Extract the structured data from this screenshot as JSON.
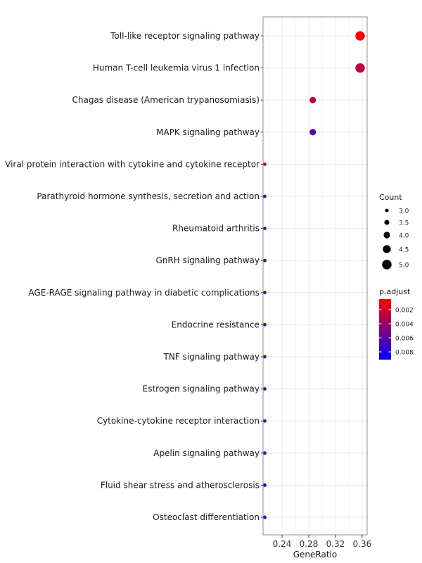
{
  "chart_data": {
    "type": "scatter",
    "xlabel": "GeneRatio",
    "ylabel": "",
    "xlim": [
      0.2115,
      0.3675
    ],
    "x_ticks": [
      0.24,
      0.28,
      0.32,
      0.36
    ],
    "x_tick_labels": [
      "0.24",
      "0.28",
      "0.32",
      "0.36"
    ],
    "grid": true,
    "legend_placement": "right",
    "terms": [
      "Toll-like receptor signaling pathway",
      "Human T-cell leukemia virus 1 infection",
      "Chagas disease (American trypanosomiasis)",
      "MAPK signaling pathway",
      "Viral protein interaction with cytokine and cytokine receptor",
      "Parathyroid hormone synthesis, secretion and action",
      "Rheumatoid arthritis",
      "GnRH signaling pathway",
      "AGE-RAGE signaling pathway in diabetic complications",
      "Endocrine resistance",
      "TNF signaling pathway",
      "Estrogen signaling pathway",
      "Cytokine-cytokine receptor interaction",
      "Apelin signaling pathway",
      "Fluid shear stress and atherosclerosis",
      "Osteoclast differentiation"
    ],
    "points": [
      {
        "x": 0.357,
        "count": 5,
        "p_adjust": 0.0005
      },
      {
        "x": 0.357,
        "count": 5,
        "p_adjust": 0.0026
      },
      {
        "x": 0.286,
        "count": 4,
        "p_adjust": 0.0028
      },
      {
        "x": 0.286,
        "count": 4,
        "p_adjust": 0.006
      },
      {
        "x": 0.214,
        "count": 3,
        "p_adjust": 0.0028
      },
      {
        "x": 0.214,
        "count": 3,
        "p_adjust": 0.006
      },
      {
        "x": 0.214,
        "count": 3,
        "p_adjust": 0.006
      },
      {
        "x": 0.214,
        "count": 3,
        "p_adjust": 0.006
      },
      {
        "x": 0.214,
        "count": 3,
        "p_adjust": 0.006
      },
      {
        "x": 0.214,
        "count": 3,
        "p_adjust": 0.006
      },
      {
        "x": 0.214,
        "count": 3,
        "p_adjust": 0.006
      },
      {
        "x": 0.214,
        "count": 3,
        "p_adjust": 0.006
      },
      {
        "x": 0.214,
        "count": 3,
        "p_adjust": 0.006
      },
      {
        "x": 0.214,
        "count": 3,
        "p_adjust": 0.006
      },
      {
        "x": 0.214,
        "count": 3,
        "p_adjust": 0.009
      },
      {
        "x": 0.214,
        "count": 3,
        "p_adjust": 0.0091
      }
    ],
    "size_legend": {
      "title": "Count",
      "values": [
        3.0,
        3.5,
        4.0,
        4.5,
        5.0
      ],
      "labels": [
        "3.0",
        "3.5",
        "4.0",
        "4.5",
        "5.0"
      ]
    },
    "color_legend": {
      "title": "p.adjust",
      "range": [
        0.0005,
        0.0091
      ],
      "low_color": "#ff0000",
      "high_color": "#0000ff",
      "ticks": [
        0.002,
        0.004,
        0.006,
        0.008
      ],
      "tick_labels": [
        "0.002",
        "0.004",
        "0.006",
        "0.008"
      ]
    },
    "colors": {
      "panel_border": "#8c8c8c",
      "grid": "#ebebeb"
    }
  }
}
